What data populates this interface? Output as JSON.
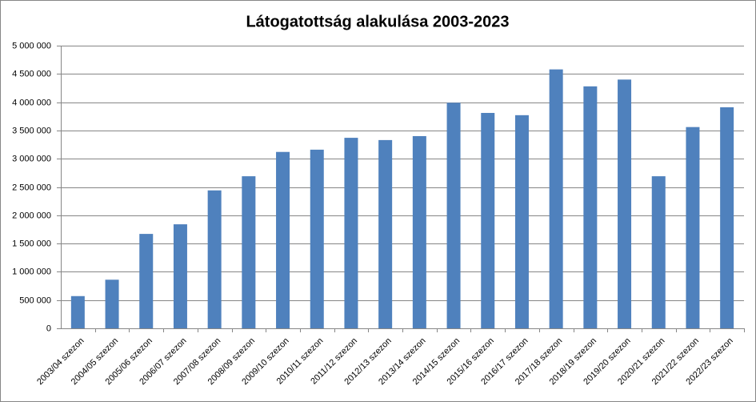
{
  "chart_data": {
    "type": "bar",
    "title": "Látogatottság alakulása 2003-2023",
    "categories": [
      "2003/04 szezon",
      "2004/05 szezon",
      "2005/06 szezon",
      "2006/07 szezon",
      "2007/08 szezon",
      "2008/09  szezon",
      "2009/10 szezon",
      "2010/11 szezon",
      "2011/12 szezon",
      "2012/13 szezon",
      "2013/14 szezon",
      "2014/15 szezon",
      "2015/16 szezon",
      "2016/17 szezon",
      "2017/18 szezon",
      "2018/19 szezon",
      "2019/20 szezon",
      "2020/21 szezon",
      "2021/22 szezon",
      "2022/23 szezon"
    ],
    "values": [
      570000,
      860000,
      1670000,
      1840000,
      2440000,
      2690000,
      3120000,
      3160000,
      3370000,
      3330000,
      3400000,
      3990000,
      3810000,
      3770000,
      4580000,
      4280000,
      4400000,
      2690000,
      3560000,
      3910000
    ],
    "color": "#4f81bd",
    "ylim": [
      0,
      5000000
    ],
    "yticks": [
      0,
      {
        "value": 500000,
        "label": "500 000"
      },
      {
        "value": 1000000,
        "label": "1 000 000"
      },
      {
        "value": 1500000,
        "label": "1 500 000"
      },
      {
        "value": 2000000,
        "label": "2 000 000"
      },
      {
        "value": 2500000,
        "label": "2 500 000"
      },
      {
        "value": 3000000,
        "label": "3 000 000"
      },
      {
        "value": 3500000,
        "label": "3 500 000"
      },
      {
        "value": 4000000,
        "label": "4 000 000"
      },
      {
        "value": 4500000,
        "label": "4 500 000"
      },
      {
        "value": 5000000,
        "label": "5 000 000"
      }
    ],
    "grid": true
  }
}
